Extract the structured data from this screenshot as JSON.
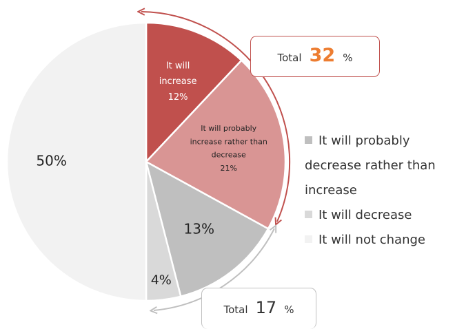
{
  "chart_data": {
    "type": "pie",
    "series": [
      {
        "label": "It will increase",
        "value": 12,
        "display": "12%",
        "color": "#c0504d"
      },
      {
        "label": "It will probably increase rather than decrease",
        "value": 21,
        "display": "21%",
        "color": "#d99594"
      },
      {
        "label": "It will probably decrease rather than increase",
        "value": 13,
        "display": "13%",
        "color": "#bfbfbf"
      },
      {
        "label": "It will decrease",
        "value": 4,
        "display": "4%",
        "color": "#d9d9d9"
      },
      {
        "label": "It will not change",
        "value": 50,
        "display": "50%",
        "color": "#f2f2f2"
      }
    ],
    "slice_labels": [
      [
        "It will",
        "increase",
        "12%"
      ],
      [
        "It will probably",
        "increase rather than",
        "decrease",
        "21%"
      ],
      [
        "13%"
      ],
      [
        "4%"
      ],
      [
        "50%"
      ]
    ],
    "legend": {
      "items": [
        {
          "lines": [
            "It will probably",
            "decrease rather than",
            "increase"
          ],
          "color": "#bfbfbf"
        },
        {
          "lines": [
            "It will decrease"
          ],
          "color": "#d9d9d9"
        },
        {
          "lines": [
            "It will not change"
          ],
          "color": "#f2f2f2"
        }
      ]
    },
    "callouts": [
      {
        "label": "Total",
        "value": "32",
        "unit": "%",
        "color": "#c0504d",
        "value_color": "#ed7d31"
      },
      {
        "label": "Total",
        "value": "17",
        "unit": "%",
        "color": "#bfbfbf",
        "value_color": "#333333"
      }
    ]
  }
}
